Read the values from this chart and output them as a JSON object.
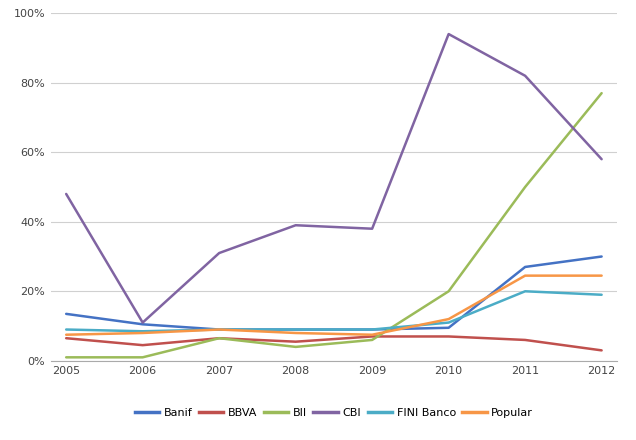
{
  "years": [
    2005,
    2006,
    2007,
    2008,
    2009,
    2010,
    2011,
    2012
  ],
  "series": {
    "Banif": {
      "values": [
        0.135,
        0.105,
        0.09,
        0.09,
        0.09,
        0.095,
        0.27,
        0.3
      ],
      "color": "#4472C4"
    },
    "BBVA": {
      "values": [
        0.065,
        0.045,
        0.065,
        0.055,
        0.07,
        0.07,
        0.06,
        0.03
      ],
      "color": "#C0504D"
    },
    "BII": {
      "values": [
        0.01,
        0.01,
        0.065,
        0.04,
        0.06,
        0.2,
        0.5,
        0.77
      ],
      "color": "#9BBB59"
    },
    "CBI": {
      "values": [
        0.48,
        0.11,
        0.31,
        0.39,
        0.38,
        0.94,
        0.82,
        0.58
      ],
      "color": "#8064A2"
    },
    "FINI Banco": {
      "values": [
        0.09,
        0.085,
        0.09,
        0.09,
        0.09,
        0.11,
        0.2,
        0.19
      ],
      "color": "#4BACC6"
    },
    "Popular": {
      "values": [
        0.075,
        0.08,
        0.09,
        0.08,
        0.075,
        0.12,
        0.245,
        0.245
      ],
      "color": "#F79646"
    }
  },
  "ylim": [
    0.0,
    1.0
  ],
  "yticks": [
    0.0,
    0.2,
    0.4,
    0.6,
    0.8,
    1.0
  ],
  "ytick_labels": [
    "0%",
    "20%",
    "40%",
    "60%",
    "80%",
    "100%"
  ],
  "background_color": "#ffffff",
  "grid_color": "#d0d0d0",
  "legend_order": [
    "Banif",
    "BBVA",
    "BII",
    "CBI",
    "FINI Banco",
    "Popular"
  ],
  "linewidth": 1.8,
  "tick_fontsize": 8,
  "legend_fontsize": 8
}
